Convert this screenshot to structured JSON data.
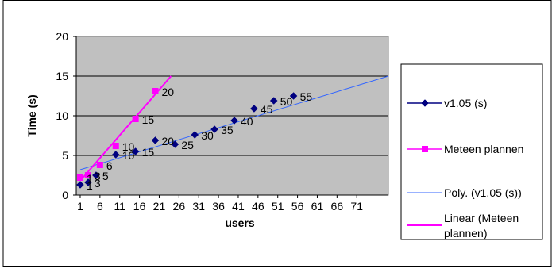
{
  "chart_data": {
    "type": "scatter",
    "xlabel": "users",
    "ylabel": "Time (s)",
    "xlim": [
      0,
      79
    ],
    "ylim": [
      0,
      20
    ],
    "y_ticks": [
      0,
      5,
      10,
      15,
      20
    ],
    "x_ticks": [
      1,
      6,
      11,
      16,
      21,
      26,
      31,
      36,
      41,
      46,
      51,
      56,
      61,
      66,
      71
    ],
    "grid": "horizontal",
    "plot_background": "#c0c0c0",
    "legend_position": "right",
    "series": [
      {
        "name": "v1.05 (s)",
        "marker": "diamond",
        "color": "#000080",
        "points": [
          {
            "x": 1,
            "y": 1.3,
            "label": "1"
          },
          {
            "x": 3,
            "y": 1.6,
            "label": "3"
          },
          {
            "x": 5,
            "y": 2.5,
            "label": "5"
          },
          {
            "x": 10,
            "y": 5.1,
            "label": "10"
          },
          {
            "x": 15,
            "y": 5.5,
            "label": "15"
          },
          {
            "x": 20,
            "y": 6.9,
            "label": "20"
          },
          {
            "x": 25,
            "y": 6.4,
            "label": "25"
          },
          {
            "x": 30,
            "y": 7.6,
            "label": "30"
          },
          {
            "x": 35,
            "y": 8.3,
            "label": "35"
          },
          {
            "x": 40,
            "y": 9.4,
            "label": "40"
          },
          {
            "x": 45,
            "y": 10.9,
            "label": "45"
          },
          {
            "x": 50,
            "y": 11.9,
            "label": "50"
          },
          {
            "x": 55,
            "y": 12.5,
            "label": "55"
          }
        ]
      },
      {
        "name": "Meteen plannen",
        "marker": "square",
        "color": "#ff00ff",
        "points": [
          {
            "x": 1,
            "y": 2.2,
            "label": "1"
          },
          {
            "x": 3,
            "y": 2.5,
            "label": "3"
          },
          {
            "x": 6,
            "y": 3.8,
            "label": "6"
          },
          {
            "x": 10,
            "y": 6.2,
            "label": "10"
          },
          {
            "x": 15,
            "y": 9.6,
            "label": "15"
          },
          {
            "x": 20,
            "y": 13.1,
            "label": "20"
          }
        ]
      }
    ],
    "trendlines": [
      {
        "name": "Poly. (v1.05 (s))",
        "color": "#3366ff",
        "from": [
          1,
          3.2
        ],
        "to": [
          79,
          15
        ]
      },
      {
        "name": "Linear (Meteen plannen)",
        "color": "#ff00ff",
        "from": [
          1,
          1.8
        ],
        "to": [
          24,
          15
        ]
      }
    ],
    "legend": [
      {
        "label": "v1.05 (s)",
        "line_color": "#000080",
        "marker": "diamond"
      },
      {
        "label": "Meteen plannen",
        "line_color": "#ff00ff",
        "marker": "square"
      },
      {
        "label": "Poly. (v1.05 (s))",
        "line_color": "#3366ff",
        "marker": "none"
      },
      {
        "label_lines": [
          "Linear (Meteen",
          "plannen)"
        ],
        "line_color": "#ff00ff",
        "marker": "none"
      }
    ]
  }
}
